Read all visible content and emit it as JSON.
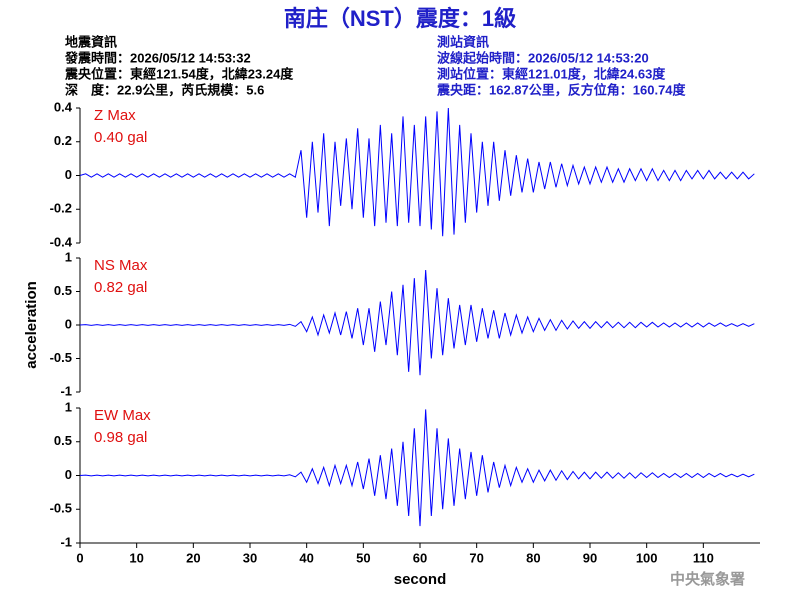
{
  "header": {
    "title": "南庄（NST）震度：1級",
    "left": [
      "地震資訊",
      "發震時間：2026/05/12 14:53:32",
      "震央位置：東經121.54度，北緯23.24度",
      "深　度：22.9公里，芮氏規模：5.6"
    ],
    "right": [
      "測站資訊",
      "波線起始時間：2026/05/12 14:53:20",
      "測站位置：東經121.01度，北緯24.63度",
      "震央距：162.87公里，反方位角：160.74度"
    ]
  },
  "footer": "中央氣象署",
  "chart_data": [
    {
      "type": "line",
      "annotations": [
        "Z Max",
        "0.40 gal"
      ],
      "color": "#0000ff",
      "xlim": [
        0,
        120
      ],
      "ylim": [
        -0.4,
        0.4
      ],
      "yticks": [
        0.4,
        0.2,
        0,
        -0.2,
        -0.4
      ],
      "x": [
        0,
        1,
        2,
        3,
        4,
        5,
        6,
        7,
        8,
        9,
        10,
        11,
        12,
        13,
        14,
        15,
        16,
        17,
        18,
        19,
        20,
        21,
        22,
        23,
        24,
        25,
        26,
        27,
        28,
        29,
        30,
        31,
        32,
        33,
        34,
        35,
        36,
        37,
        38,
        39,
        40,
        41,
        42,
        43,
        44,
        45,
        46,
        47,
        48,
        49,
        50,
        51,
        52,
        53,
        54,
        55,
        56,
        57,
        58,
        59,
        60,
        61,
        62,
        63,
        64,
        65,
        66,
        67,
        68,
        69,
        70,
        71,
        72,
        73,
        74,
        75,
        76,
        77,
        78,
        79,
        80,
        81,
        82,
        83,
        84,
        85,
        86,
        87,
        88,
        89,
        90,
        91,
        92,
        93,
        94,
        95,
        96,
        97,
        98,
        99,
        100,
        101,
        102,
        103,
        104,
        105,
        106,
        107,
        108,
        109,
        110,
        111,
        112,
        113,
        114,
        115,
        116,
        117,
        118,
        119
      ],
      "values": [
        0,
        0.01,
        -0.01,
        0.01,
        -0.01,
        0.01,
        -0.01,
        0.01,
        -0.01,
        0.01,
        -0.01,
        0.01,
        -0.01,
        0.01,
        -0.01,
        0.01,
        -0.01,
        0.01,
        -0.01,
        0.01,
        -0.01,
        0.01,
        -0.01,
        0.01,
        -0.01,
        0.01,
        -0.01,
        0.01,
        -0.01,
        0.01,
        -0.01,
        0.01,
        -0.01,
        0.01,
        -0.01,
        0.01,
        -0.01,
        0.01,
        -0.01,
        0.15,
        -0.25,
        0.2,
        -0.22,
        0.25,
        -0.3,
        0.2,
        -0.18,
        0.22,
        -0.2,
        0.28,
        -0.25,
        0.22,
        -0.3,
        0.3,
        -0.28,
        0.25,
        -0.3,
        0.35,
        -0.28,
        0.3,
        -0.3,
        0.35,
        -0.32,
        0.38,
        -0.36,
        0.4,
        -0.35,
        0.3,
        -0.28,
        0.25,
        -0.22,
        0.2,
        -0.18,
        0.2,
        -0.15,
        0.15,
        -0.12,
        0.12,
        -0.1,
        0.1,
        -0.1,
        0.08,
        -0.08,
        0.08,
        -0.07,
        0.07,
        -0.06,
        0.06,
        -0.05,
        0.05,
        -0.05,
        0.05,
        -0.04,
        0.05,
        -0.04,
        0.04,
        -0.04,
        0.04,
        -0.03,
        0.04,
        -0.03,
        0.04,
        -0.03,
        0.03,
        -0.03,
        0.03,
        -0.03,
        0.03,
        -0.02,
        0.03,
        -0.02,
        0.03,
        -0.02,
        0.02,
        -0.02,
        0.02,
        -0.02,
        0.02,
        -0.02,
        0.01
      ]
    },
    {
      "type": "line",
      "annotations": [
        "NS Max",
        "0.82 gal"
      ],
      "ylabel": "acceleration",
      "color": "#0000ff",
      "xlim": [
        0,
        120
      ],
      "ylim": [
        -1,
        1
      ],
      "yticks": [
        1,
        0.5,
        0,
        -0.5,
        -1
      ],
      "x": [
        0,
        1,
        2,
        3,
        4,
        5,
        6,
        7,
        8,
        9,
        10,
        11,
        12,
        13,
        14,
        15,
        16,
        17,
        18,
        19,
        20,
        21,
        22,
        23,
        24,
        25,
        26,
        27,
        28,
        29,
        30,
        31,
        32,
        33,
        34,
        35,
        36,
        37,
        38,
        39,
        40,
        41,
        42,
        43,
        44,
        45,
        46,
        47,
        48,
        49,
        50,
        51,
        52,
        53,
        54,
        55,
        56,
        57,
        58,
        59,
        60,
        61,
        62,
        63,
        64,
        65,
        66,
        67,
        68,
        69,
        70,
        71,
        72,
        73,
        74,
        75,
        76,
        77,
        78,
        79,
        80,
        81,
        82,
        83,
        84,
        85,
        86,
        87,
        88,
        89,
        90,
        91,
        92,
        93,
        94,
        95,
        96,
        97,
        98,
        99,
        100,
        101,
        102,
        103,
        104,
        105,
        106,
        107,
        108,
        109,
        110,
        111,
        112,
        113,
        114,
        115,
        116,
        117,
        118,
        119
      ],
      "values": [
        0,
        0.005,
        -0.005,
        0.005,
        -0.005,
        0.005,
        -0.005,
        0.005,
        -0.005,
        0.005,
        -0.005,
        0.005,
        -0.005,
        0.005,
        -0.005,
        0.005,
        -0.005,
        0.005,
        -0.005,
        0.005,
        -0.005,
        0.005,
        -0.005,
        0.005,
        -0.005,
        0.005,
        -0.005,
        0.005,
        -0.005,
        0.005,
        -0.005,
        0.005,
        -0.005,
        0.005,
        -0.005,
        0.005,
        -0.005,
        0.01,
        -0.02,
        0.05,
        -0.1,
        0.12,
        -0.15,
        0.15,
        -0.12,
        0.18,
        -0.15,
        0.2,
        -0.2,
        0.25,
        -0.3,
        0.25,
        -0.4,
        0.35,
        -0.3,
        0.5,
        -0.45,
        0.6,
        -0.7,
        0.7,
        -0.75,
        0.82,
        -0.5,
        0.55,
        -0.45,
        0.4,
        -0.35,
        0.3,
        -0.3,
        0.3,
        -0.25,
        0.25,
        -0.2,
        0.22,
        -0.2,
        0.18,
        -0.15,
        0.15,
        -0.12,
        0.12,
        -0.1,
        0.1,
        -0.08,
        0.08,
        -0.08,
        0.07,
        -0.06,
        0.06,
        -0.05,
        0.05,
        -0.05,
        0.05,
        -0.04,
        0.05,
        -0.04,
        0.04,
        -0.04,
        0.04,
        -0.04,
        0.04,
        -0.03,
        0.04,
        -0.03,
        0.03,
        -0.03,
        0.03,
        -0.03,
        0.03,
        -0.03,
        0.03,
        -0.03,
        0.03,
        -0.02,
        0.03,
        -0.02,
        0.02,
        -0.02,
        0.02,
        -0.02,
        0.02
      ]
    },
    {
      "type": "line",
      "annotations": [
        "EW Max",
        "0.98 gal"
      ],
      "xlabel": "second",
      "color": "#0000ff",
      "xlim": [
        0,
        120
      ],
      "ylim": [
        -1,
        1
      ],
      "yticks": [
        1,
        0.5,
        0,
        -0.5,
        -1
      ],
      "xticks": [
        0,
        10,
        20,
        30,
        40,
        50,
        60,
        70,
        80,
        90,
        100,
        110
      ],
      "x": [
        0,
        1,
        2,
        3,
        4,
        5,
        6,
        7,
        8,
        9,
        10,
        11,
        12,
        13,
        14,
        15,
        16,
        17,
        18,
        19,
        20,
        21,
        22,
        23,
        24,
        25,
        26,
        27,
        28,
        29,
        30,
        31,
        32,
        33,
        34,
        35,
        36,
        37,
        38,
        39,
        40,
        41,
        42,
        43,
        44,
        45,
        46,
        47,
        48,
        49,
        50,
        51,
        52,
        53,
        54,
        55,
        56,
        57,
        58,
        59,
        60,
        61,
        62,
        63,
        64,
        65,
        66,
        67,
        68,
        69,
        70,
        71,
        72,
        73,
        74,
        75,
        76,
        77,
        78,
        79,
        80,
        81,
        82,
        83,
        84,
        85,
        86,
        87,
        88,
        89,
        90,
        91,
        92,
        93,
        94,
        95,
        96,
        97,
        98,
        99,
        100,
        101,
        102,
        103,
        104,
        105,
        106,
        107,
        108,
        109,
        110,
        111,
        112,
        113,
        114,
        115,
        116,
        117,
        118,
        119
      ],
      "values": [
        0,
        0.005,
        -0.005,
        0.005,
        -0.005,
        0.005,
        -0.005,
        0.005,
        -0.005,
        0.005,
        -0.005,
        0.005,
        -0.005,
        0.005,
        -0.005,
        0.005,
        -0.005,
        0.005,
        -0.005,
        0.005,
        -0.005,
        0.005,
        -0.005,
        0.005,
        -0.005,
        0.005,
        -0.005,
        0.005,
        -0.005,
        0.005,
        -0.005,
        0.005,
        -0.005,
        0.005,
        -0.005,
        0.005,
        -0.005,
        0.01,
        -0.02,
        0.05,
        -0.1,
        0.1,
        -0.12,
        0.12,
        -0.15,
        0.15,
        -0.12,
        0.15,
        -0.15,
        0.2,
        -0.2,
        0.25,
        -0.3,
        0.3,
        -0.35,
        0.4,
        -0.45,
        0.5,
        -0.6,
        0.7,
        -0.75,
        0.98,
        -0.6,
        0.7,
        -0.5,
        0.55,
        -0.45,
        0.4,
        -0.35,
        0.35,
        -0.3,
        0.3,
        -0.25,
        0.2,
        -0.18,
        0.15,
        -0.15,
        0.12,
        -0.1,
        0.1,
        -0.1,
        0.08,
        -0.08,
        0.08,
        -0.07,
        0.07,
        -0.06,
        0.06,
        -0.05,
        0.05,
        -0.05,
        0.05,
        -0.04,
        0.05,
        -0.04,
        0.04,
        -0.04,
        0.04,
        -0.04,
        0.04,
        -0.03,
        0.04,
        -0.03,
        0.03,
        -0.03,
        0.03,
        -0.03,
        0.03,
        -0.03,
        0.03,
        -0.03,
        0.03,
        -0.02,
        0.03,
        -0.02,
        0.02,
        -0.02,
        0.02,
        -0.02,
        0.02
      ]
    }
  ]
}
